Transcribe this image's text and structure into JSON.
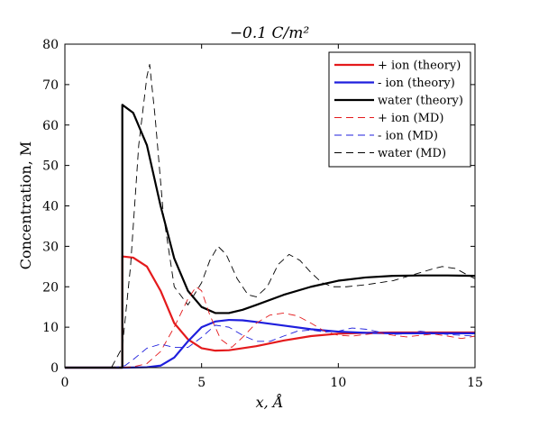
{
  "chart_data": {
    "type": "line",
    "title": "−0.1 C/m²",
    "xlabel": "x, Å",
    "ylabel": "Concentration, M",
    "xlim": [
      0,
      15
    ],
    "ylim": [
      0,
      80
    ],
    "xticks": [
      0,
      5,
      10,
      15
    ],
    "yticks": [
      0,
      10,
      20,
      30,
      40,
      50,
      60,
      70,
      80
    ],
    "grid": false,
    "legend_position": "top-right",
    "series": [
      {
        "name": "+ ion (theory)",
        "color": "#e41a1c",
        "style": "solid",
        "x": [
          0,
          1.5,
          2.1,
          2.1,
          2.5,
          3.0,
          3.5,
          4.0,
          4.5,
          5.0,
          5.5,
          6.0,
          7.0,
          8.0,
          9.0,
          10.0,
          11.0,
          12.0,
          13.0,
          14.0,
          15.0
        ],
        "y": [
          0,
          0,
          0,
          27.5,
          27.2,
          25.0,
          19.0,
          11.0,
          7.0,
          4.8,
          4.2,
          4.3,
          5.3,
          6.7,
          7.8,
          8.4,
          8.6,
          8.7,
          8.7,
          8.7,
          8.7
        ]
      },
      {
        "name": "- ion (theory)",
        "color": "#1f1fdd",
        "style": "solid",
        "x": [
          0,
          2.1,
          3.0,
          3.5,
          4.0,
          4.5,
          5.0,
          5.5,
          6.0,
          6.5,
          7.0,
          8.0,
          9.0,
          10.0,
          11.0,
          12.0,
          13.0,
          14.0,
          15.0
        ],
        "y": [
          0,
          0,
          0.1,
          0.5,
          2.5,
          6.5,
          10.0,
          11.4,
          11.8,
          11.7,
          11.3,
          10.4,
          9.5,
          8.9,
          8.6,
          8.5,
          8.5,
          8.5,
          8.5
        ]
      },
      {
        "name": "water (theory)",
        "color": "#000000",
        "style": "solid",
        "x": [
          0,
          2.1,
          2.1,
          2.5,
          3.0,
          3.5,
          4.0,
          4.5,
          5.0,
          5.5,
          6.0,
          6.5,
          7.0,
          8.0,
          9.0,
          10.0,
          11.0,
          12.0,
          13.0,
          14.0,
          15.0
        ],
        "y": [
          0,
          0,
          65.0,
          63.0,
          55.0,
          40.0,
          27.0,
          19.0,
          15.0,
          13.5,
          13.5,
          14.3,
          15.5,
          18.0,
          20.0,
          21.5,
          22.3,
          22.7,
          22.8,
          22.8,
          22.7
        ]
      },
      {
        "name": "+ ion (MD)",
        "color": "#e41a1c",
        "style": "dashed",
        "x": [
          0,
          1.8,
          2.5,
          3.0,
          3.5,
          4.0,
          4.5,
          4.8,
          5.0,
          5.3,
          5.7,
          6.1,
          6.5,
          7.0,
          7.5,
          8.0,
          8.5,
          9.0,
          9.5,
          10.0,
          10.5,
          11.0,
          11.5,
          12.0,
          12.5,
          13.0,
          13.5,
          14.0,
          14.5,
          15.0
        ],
        "y": [
          0,
          0,
          0.2,
          1.0,
          4.0,
          10.0,
          17.0,
          20.0,
          19.0,
          13.0,
          7.0,
          5.0,
          7.5,
          11.0,
          13.0,
          13.5,
          12.8,
          11.0,
          9.0,
          8.0,
          7.8,
          8.2,
          8.6,
          8.0,
          7.6,
          8.0,
          8.3,
          7.8,
          7.2,
          7.8
        ]
      },
      {
        "name": "- ion (MD)",
        "color": "#1f1fdd",
        "style": "dashed",
        "x": [
          0,
          1.8,
          2.2,
          2.5,
          3.0,
          3.5,
          4.0,
          4.5,
          5.0,
          5.5,
          6.0,
          6.5,
          7.0,
          7.5,
          8.0,
          8.5,
          9.0,
          9.5,
          10.0,
          10.5,
          11.0,
          11.5,
          12.0,
          12.5,
          13.0,
          13.5,
          14.0,
          14.5,
          15.0
        ],
        "y": [
          0,
          0,
          0.5,
          2.0,
          4.8,
          5.8,
          5.0,
          5.0,
          7.5,
          10.5,
          10.0,
          8.0,
          6.5,
          6.5,
          7.8,
          9.0,
          9.3,
          8.8,
          9.0,
          9.8,
          9.5,
          8.8,
          8.2,
          8.4,
          9.0,
          8.6,
          8.2,
          8.0,
          7.8
        ]
      },
      {
        "name": "water (MD)",
        "color": "#000000",
        "style": "dashed",
        "x": [
          0,
          1.7,
          2.1,
          2.4,
          2.7,
          3.0,
          3.1,
          3.3,
          3.6,
          4.0,
          4.5,
          5.0,
          5.3,
          5.6,
          5.9,
          6.3,
          6.7,
          7.0,
          7.4,
          7.8,
          8.2,
          8.6,
          9.0,
          9.4,
          9.8,
          10.3,
          11.0,
          11.5,
          12.0,
          12.5,
          13.0,
          13.5,
          13.8,
          14.3,
          14.7,
          15.0
        ],
        "y": [
          0,
          0,
          5.0,
          25.0,
          55.0,
          72.0,
          75.0,
          62.0,
          38.0,
          20.0,
          15.5,
          21.0,
          26.5,
          30.0,
          28.0,
          22.0,
          18.0,
          17.5,
          20.0,
          25.5,
          28.0,
          26.5,
          23.5,
          21.0,
          20.0,
          20.0,
          20.5,
          21.0,
          21.5,
          22.5,
          23.5,
          24.5,
          25.0,
          24.5,
          23.0,
          22.0
        ]
      }
    ]
  }
}
